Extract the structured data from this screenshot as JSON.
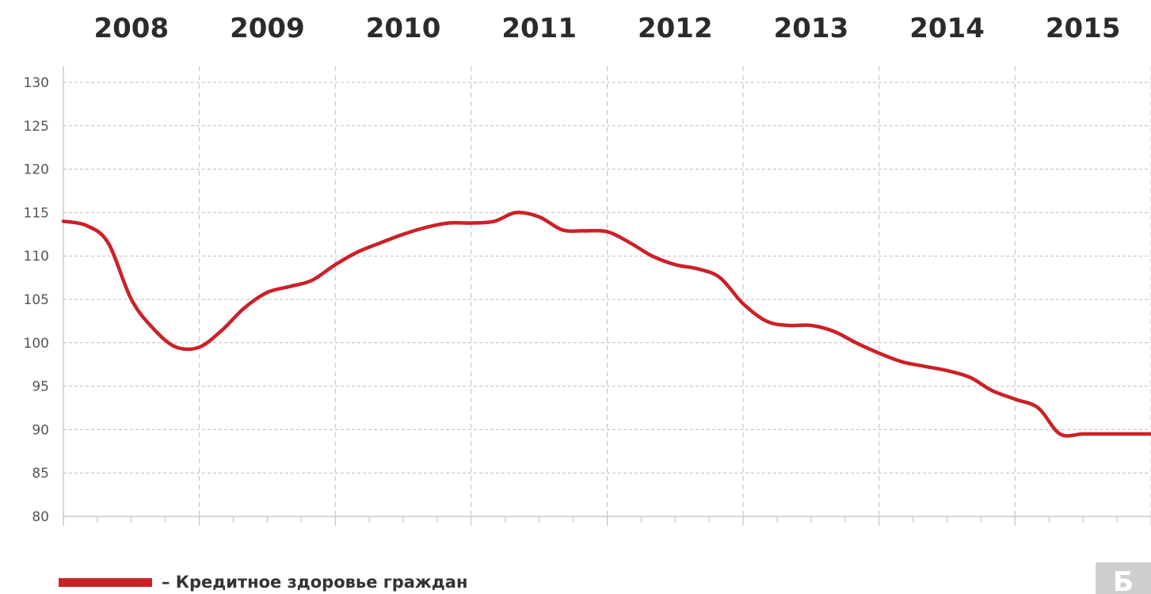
{
  "colors": {
    "series": "#cc2027",
    "grid": "#bdbdbd"
  },
  "chart_data": {
    "type": "line",
    "title": "",
    "xlabel": "",
    "ylabel": "",
    "year_labels": [
      "2008",
      "2009",
      "2010",
      "2011",
      "2012",
      "2013",
      "2014",
      "2015"
    ],
    "ylim": [
      80,
      130
    ],
    "yticks": [
      "130",
      "125",
      "120",
      "115",
      "110",
      "105",
      "100",
      "95",
      "90",
      "85",
      "80"
    ],
    "minor_ticks_per_year": 3,
    "grid": true,
    "legend_position": "bottom-left",
    "series": [
      {
        "name": "Кредитное здоровье граждан",
        "color": "#cc2027",
        "x": [
          0.0,
          0.17,
          0.33,
          0.5,
          0.67,
          0.83,
          1.0,
          1.17,
          1.33,
          1.5,
          1.67,
          1.83,
          2.0,
          2.17,
          2.33,
          2.5,
          2.67,
          2.83,
          3.0,
          3.17,
          3.33,
          3.5,
          3.67,
          3.83,
          4.0,
          4.17,
          4.33,
          4.5,
          4.67,
          4.83,
          5.0,
          5.17,
          5.33,
          5.5,
          5.67,
          5.83,
          6.0,
          6.17,
          6.33,
          6.5,
          6.67,
          6.83,
          7.0,
          7.17,
          7.33,
          7.5,
          7.67,
          7.83,
          8.0
        ],
        "values": [
          114.0,
          113.5,
          111.5,
          105.0,
          101.5,
          99.5,
          99.5,
          101.5,
          104.0,
          105.8,
          106.5,
          107.2,
          109.0,
          110.5,
          111.5,
          112.5,
          113.3,
          113.8,
          113.8,
          114.0,
          115.0,
          114.5,
          113.0,
          112.9,
          112.8,
          111.5,
          110.0,
          109.0,
          108.5,
          107.5,
          104.5,
          102.5,
          102.0,
          102.0,
          101.3,
          100.0,
          98.8,
          97.8,
          97.3,
          96.8,
          96.0,
          94.5,
          93.5,
          92.5,
          89.5,
          89.5,
          89.5,
          89.5,
          89.5
        ]
      }
    ]
  },
  "legend": {
    "label": "– Кредитное здоровье граждан"
  },
  "logo": {
    "glyph": "Б"
  }
}
